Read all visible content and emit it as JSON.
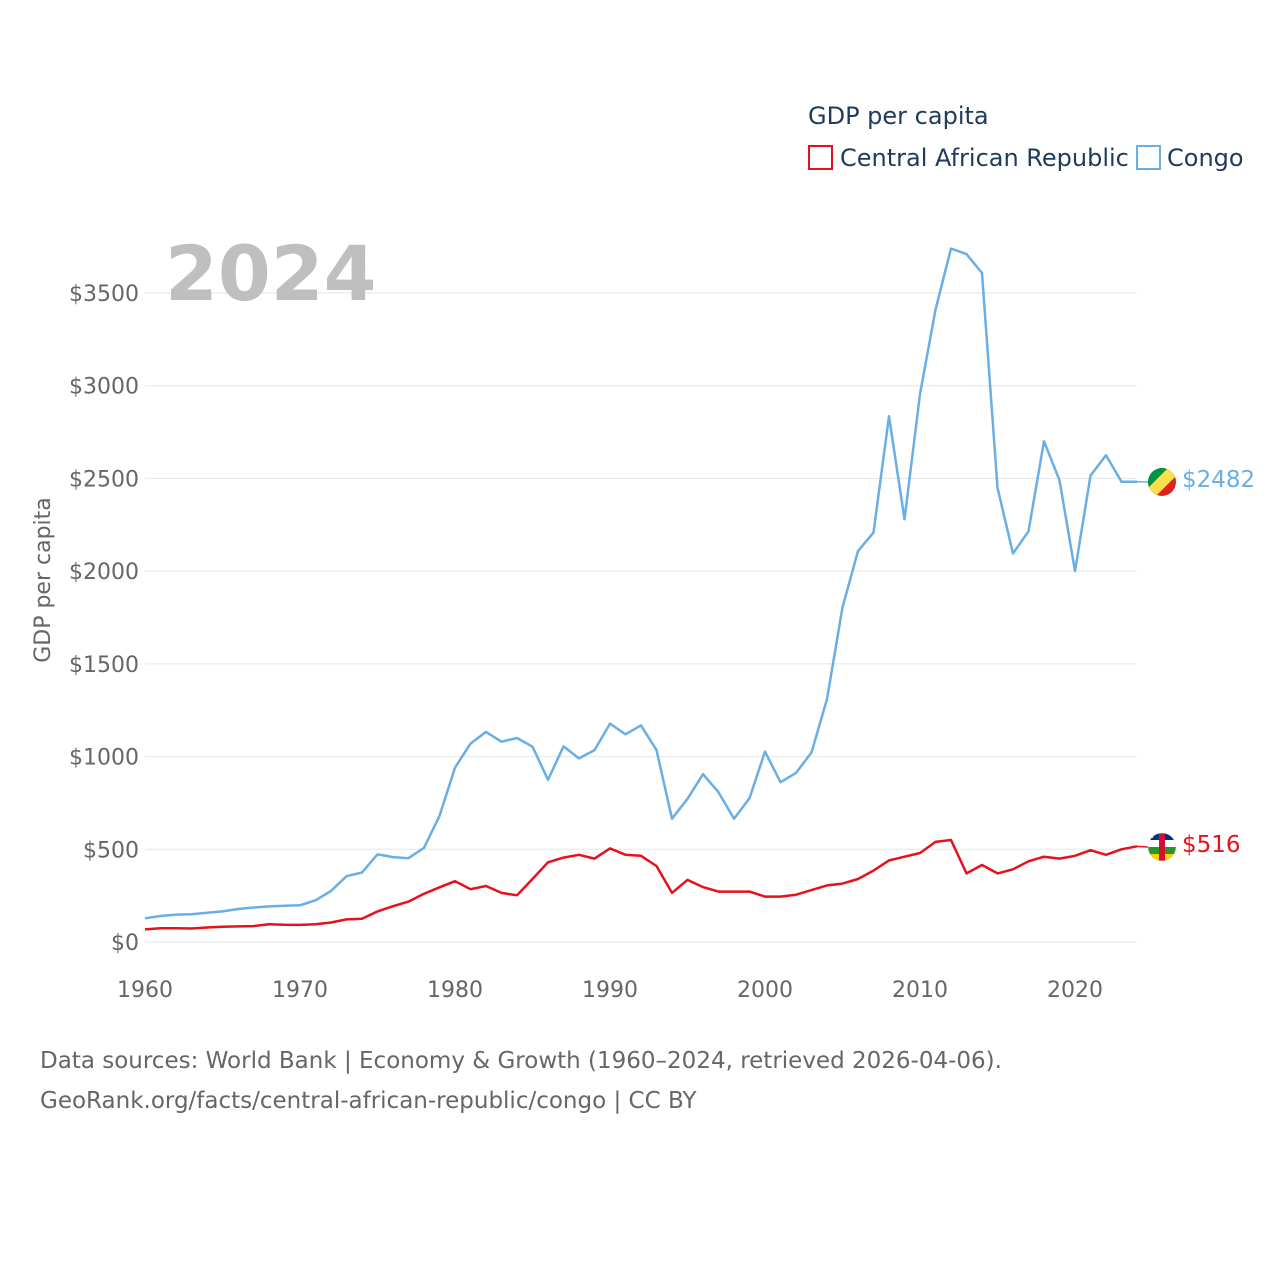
{
  "colors": {
    "car": "#e8101d",
    "congo": "#6aaee6",
    "grid": "#e6e6e6",
    "text": "#666666",
    "legend_text": "#1f3a5c"
  },
  "chart_data": {
    "type": "line",
    "year_label": "2024",
    "legend_title": "GDP per capita",
    "ylabel": "GDP per capita",
    "xlim": [
      1960,
      2024
    ],
    "ylim": [
      0,
      3500
    ],
    "x_ticks": [
      1960,
      1970,
      1980,
      1990,
      2000,
      2010,
      2020
    ],
    "x_tick_labels": [
      "1960",
      "1970",
      "1980",
      "1990",
      "2000",
      "2010",
      "2020"
    ],
    "y_ticks": [
      0,
      500,
      1000,
      1500,
      2000,
      2500,
      3000,
      3500
    ],
    "y_tick_labels": [
      "$0",
      "$500",
      "$1000",
      "$1500",
      "$2000",
      "$2500",
      "$3000",
      "$3500"
    ],
    "x": [
      1960,
      1961,
      1962,
      1963,
      1964,
      1965,
      1966,
      1967,
      1968,
      1969,
      1970,
      1971,
      1972,
      1973,
      1974,
      1975,
      1976,
      1977,
      1978,
      1979,
      1980,
      1981,
      1982,
      1983,
      1984,
      1985,
      1986,
      1987,
      1988,
      1989,
      1990,
      1991,
      1992,
      1993,
      1994,
      1995,
      1996,
      1997,
      1998,
      1999,
      2000,
      2001,
      2002,
      2003,
      2004,
      2005,
      2006,
      2007,
      2008,
      2009,
      2010,
      2011,
      2012,
      2013,
      2014,
      2015,
      2016,
      2017,
      2018,
      2019,
      2020,
      2021,
      2022,
      2023,
      2024
    ],
    "series": [
      {
        "name": "Central African Republic",
        "color": "#e8101d",
        "end_label": "$516",
        "values": [
          68,
          74,
          74,
          73,
          78,
          82,
          84,
          86,
          96,
          93,
          92,
          96,
          105,
          122,
          125,
          165,
          193,
          218,
          260,
          295,
          328,
          285,
          302,
          265,
          252,
          340,
          430,
          455,
          470,
          450,
          505,
          470,
          465,
          410,
          265,
          335,
          296,
          272,
          272,
          272,
          245,
          245,
          255,
          280,
          305,
          315,
          340,
          385,
          440,
          460,
          480,
          540,
          550,
          370,
          415,
          370,
          392,
          435,
          460,
          450,
          465,
          495,
          470,
          500,
          516
        ]
      },
      {
        "name": "Congo",
        "color": "#6aaee6",
        "end_label": "$2482",
        "values": [
          128,
          140,
          148,
          150,
          158,
          165,
          178,
          186,
          192,
          196,
          198,
          225,
          275,
          355,
          375,
          473,
          458,
          452,
          508,
          680,
          940,
          1070,
          1133,
          1080,
          1100,
          1053,
          875,
          1055,
          990,
          1035,
          1178,
          1120,
          1168,
          1035,
          665,
          772,
          905,
          808,
          665,
          775,
          1027,
          862,
          912,
          1022,
          1310,
          1805,
          2108,
          2208,
          2835,
          2280,
          2955,
          3410,
          3740,
          3710,
          3608,
          2450,
          2095,
          2215,
          2700,
          2490,
          2000,
          2515,
          2625,
          2482,
          2482
        ]
      }
    ]
  },
  "source": {
    "line1": "Data sources: World Bank | Economy & Growth (1960–2024, retrieved 2026-04-06).",
    "line2": "GeoRank.org/facts/central-african-republic/congo | CC BY"
  }
}
